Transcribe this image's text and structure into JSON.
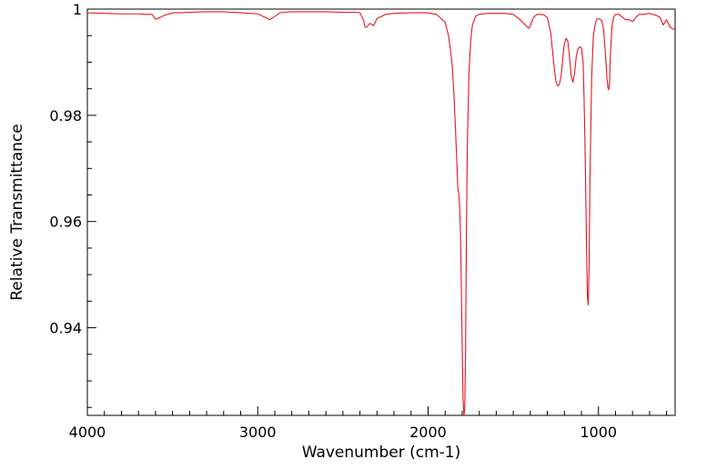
{
  "chart_data": {
    "type": "line",
    "xlabel": "Wavenumber (cm-1)",
    "ylabel": "Relative Transmittance",
    "xlim": [
      4000,
      550
    ],
    "ylim": [
      0.9235,
      1.0
    ],
    "x_ticks": [
      4000,
      3000,
      2000,
      1000
    ],
    "x_tick_labels": [
      "4000",
      "3000",
      "2000",
      "1000"
    ],
    "y_ticks": [
      0.94,
      0.96,
      0.98,
      1.0
    ],
    "y_tick_labels": [
      "0.94",
      "0.96",
      "0.98",
      "1"
    ],
    "grid": false,
    "line_color": "#e8141c",
    "series": [
      {
        "x": [
          4000,
          3900,
          3800,
          3700,
          3650,
          3620,
          3600,
          3580,
          3550,
          3500,
          3450,
          3400,
          3300,
          3200,
          3100,
          3000,
          2960,
          2930,
          2900,
          2870,
          2850,
          2800,
          2700,
          2600,
          2500,
          2420,
          2400,
          2380,
          2370,
          2360,
          2350,
          2340,
          2320,
          2300,
          2250,
          2200,
          2100,
          2000,
          1950,
          1900,
          1880,
          1860,
          1850,
          1840,
          1830,
          1825,
          1820,
          1815,
          1810,
          1805,
          1800,
          1795,
          1790,
          1785,
          1780,
          1775,
          1770,
          1760,
          1750,
          1740,
          1720,
          1700,
          1650,
          1600,
          1550,
          1500,
          1460,
          1430,
          1410,
          1400,
          1390,
          1380,
          1360,
          1340,
          1320,
          1300,
          1280,
          1260,
          1250,
          1240,
          1230,
          1220,
          1210,
          1200,
          1190,
          1180,
          1170,
          1160,
          1150,
          1140,
          1130,
          1120,
          1110,
          1100,
          1090,
          1085,
          1080,
          1075,
          1070,
          1065,
          1060,
          1055,
          1050,
          1040,
          1030,
          1020,
          1010,
          1000,
          990,
          980,
          970,
          960,
          950,
          945,
          940,
          935,
          930,
          920,
          910,
          900,
          880,
          860,
          840,
          820,
          800,
          790,
          780,
          760,
          740,
          720,
          700,
          680,
          660,
          640,
          620,
          600,
          580,
          560,
          550
        ],
        "y": [
          0.9993,
          0.9992,
          0.9991,
          0.9991,
          0.999,
          0.999,
          0.9981,
          0.9983,
          0.9988,
          0.9993,
          0.9993,
          0.9994,
          0.9995,
          0.9995,
          0.9993,
          0.9991,
          0.9985,
          0.998,
          0.9986,
          0.9993,
          0.9994,
          0.9995,
          0.9995,
          0.9995,
          0.9994,
          0.9994,
          0.9993,
          0.998,
          0.9966,
          0.9966,
          0.997,
          0.9973,
          0.9969,
          0.9982,
          0.999,
          0.9992,
          0.9993,
          0.9993,
          0.999,
          0.9975,
          0.995,
          0.99,
          0.985,
          0.978,
          0.97,
          0.966,
          0.9652,
          0.963,
          0.958,
          0.948,
          0.937,
          0.927,
          0.9235,
          0.9245,
          0.936,
          0.958,
          0.974,
          0.988,
          0.994,
          0.997,
          0.9987,
          0.999,
          0.9992,
          0.9992,
          0.9992,
          0.999,
          0.998,
          0.997,
          0.9964,
          0.9968,
          0.9978,
          0.9985,
          0.999,
          0.999,
          0.9989,
          0.9984,
          0.9955,
          0.989,
          0.9865,
          0.9855,
          0.9858,
          0.9872,
          0.9905,
          0.9935,
          0.9945,
          0.994,
          0.991,
          0.9875,
          0.9862,
          0.988,
          0.9912,
          0.9925,
          0.9929,
          0.9927,
          0.99,
          0.984,
          0.976,
          0.966,
          0.955,
          0.946,
          0.9443,
          0.952,
          0.968,
          0.987,
          0.995,
          0.997,
          0.9981,
          0.9982,
          0.9981,
          0.9978,
          0.9962,
          0.992,
          0.987,
          0.9852,
          0.9848,
          0.9862,
          0.9915,
          0.997,
          0.9985,
          0.999,
          0.999,
          0.9985,
          0.998,
          0.998,
          0.9977,
          0.998,
          0.9985,
          0.999,
          0.999,
          0.9991,
          0.9992,
          0.999,
          0.9988,
          0.9985,
          0.997,
          0.998,
          0.9966,
          0.9962,
          0.9963
        ]
      }
    ]
  }
}
